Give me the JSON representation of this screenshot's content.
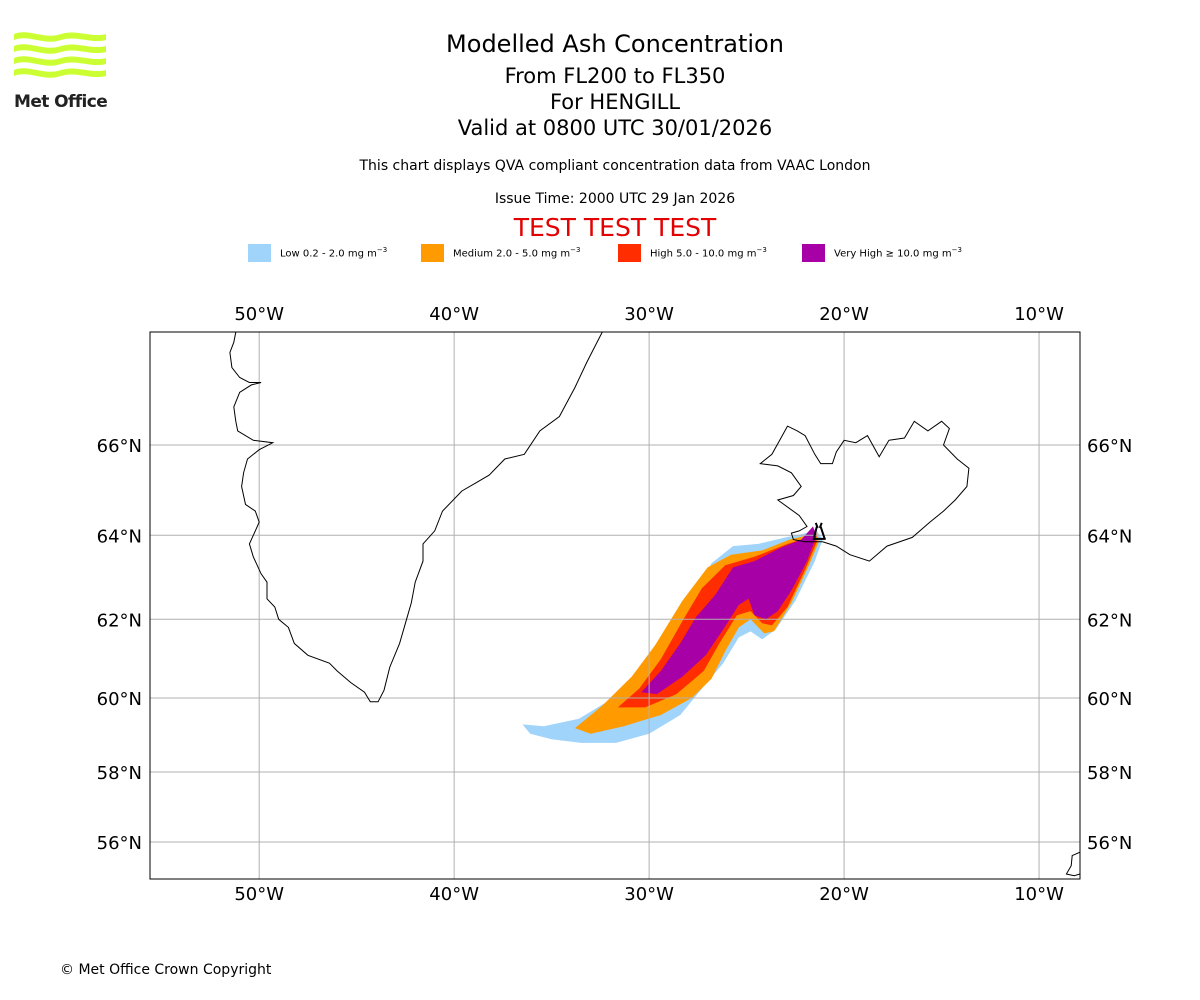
{
  "header": {
    "title": "Modelled Ash Concentration",
    "levels": "From FL200 to FL350",
    "volcano_line": "For HENGILL",
    "valid": "Valid at 0800 UTC 30/01/2026",
    "subtitle": "This chart displays QVA compliant concentration data from VAAC London",
    "issue_time": "Issue Time: 2000 UTC 29 Jan 2026",
    "test_banner": "TEST TEST TEST",
    "test_color": "#e30000"
  },
  "logo": {
    "text": "Met Office",
    "color": "#ccff33",
    "icon": "met-office-waves-icon"
  },
  "legend": [
    {
      "label": "Low 0.2 - 2.0 mg m",
      "unit_sup": "−3",
      "color": "#a0d4fa"
    },
    {
      "label": "Medium 2.0 - 5.0 mg m",
      "unit_sup": "−3",
      "color": "#ff9a00"
    },
    {
      "label": "High 5.0 - 10.0 mg m",
      "unit_sup": "−3",
      "color": "#ff2d00"
    },
    {
      "label": "Very High ≥ 10.0 mg m",
      "unit_sup": "−3",
      "color": "#a600a6"
    }
  ],
  "footer": {
    "copyright": "© Met Office Crown Copyright"
  },
  "map": {
    "extent": {
      "lon_min": -55.6,
      "lon_max": -7.9,
      "lat_min": 54.9,
      "lat_max": 68.3
    },
    "lon_ticks": [
      {
        "value": -50,
        "label": "50°W"
      },
      {
        "value": -40,
        "label": "40°W"
      },
      {
        "value": -30,
        "label": "30°W"
      },
      {
        "value": -20,
        "label": "20°W"
      },
      {
        "value": -10,
        "label": "10°W"
      }
    ],
    "lat_ticks": [
      {
        "value": 66,
        "label": "66°N"
      },
      {
        "value": 64,
        "label": "64°N"
      },
      {
        "value": 62,
        "label": "62°N"
      },
      {
        "value": 60,
        "label": "60°N"
      },
      {
        "value": 58,
        "label": "58°N"
      },
      {
        "value": 56,
        "label": "56°N"
      }
    ],
    "volcano": {
      "name": "HENGILL",
      "lon": -21.3,
      "lat": 64.1,
      "icon": "volcano-icon"
    },
    "coastlines": [
      {
        "name": "greenland",
        "points": [
          [
            -51.2,
            68.3
          ],
          [
            -51.3,
            68.1
          ],
          [
            -51.5,
            67.9
          ],
          [
            -51.4,
            67.6
          ],
          [
            -51.0,
            67.4
          ],
          [
            -50.5,
            67.3
          ],
          [
            -49.9,
            67.3
          ],
          [
            -50.4,
            67.25
          ],
          [
            -51.0,
            67.1
          ],
          [
            -51.3,
            66.8
          ],
          [
            -51.2,
            66.5
          ],
          [
            -51.1,
            66.3
          ],
          [
            -50.3,
            66.1
          ],
          [
            -49.3,
            66.05
          ],
          [
            -50.0,
            65.9
          ],
          [
            -50.6,
            65.7
          ],
          [
            -50.8,
            65.4
          ],
          [
            -50.9,
            65.1
          ],
          [
            -50.7,
            64.7
          ],
          [
            -50.2,
            64.55
          ],
          [
            -50.0,
            64.3
          ],
          [
            -50.2,
            64.1
          ],
          [
            -50.5,
            63.8
          ],
          [
            -50.3,
            63.5
          ],
          [
            -49.9,
            63.1
          ],
          [
            -49.6,
            62.9
          ],
          [
            -49.6,
            62.5
          ],
          [
            -49.2,
            62.3
          ],
          [
            -49.0,
            62.0
          ],
          [
            -48.5,
            61.8
          ],
          [
            -48.2,
            61.4
          ],
          [
            -47.5,
            61.1
          ],
          [
            -46.4,
            60.9
          ],
          [
            -46.0,
            60.7
          ],
          [
            -45.3,
            60.4
          ],
          [
            -44.6,
            60.15
          ],
          [
            -44.3,
            59.9
          ],
          [
            -43.9,
            59.9
          ],
          [
            -43.6,
            60.2
          ],
          [
            -43.3,
            60.8
          ],
          [
            -42.8,
            61.4
          ],
          [
            -42.5,
            61.9
          ],
          [
            -42.2,
            62.4
          ],
          [
            -42.0,
            62.9
          ],
          [
            -41.6,
            63.4
          ],
          [
            -41.6,
            63.8
          ],
          [
            -41.0,
            64.1
          ],
          [
            -40.6,
            64.55
          ],
          [
            -39.6,
            65.0
          ],
          [
            -38.8,
            65.2
          ],
          [
            -38.2,
            65.35
          ],
          [
            -37.4,
            65.7
          ],
          [
            -36.4,
            65.8
          ],
          [
            -35.6,
            66.3
          ],
          [
            -34.6,
            66.6
          ],
          [
            -33.8,
            67.2
          ],
          [
            -33.2,
            67.7
          ],
          [
            -32.4,
            68.3
          ]
        ]
      },
      {
        "name": "iceland",
        "points": [
          [
            -22.0,
            63.85
          ],
          [
            -22.6,
            63.9
          ],
          [
            -22.7,
            64.05
          ],
          [
            -22.3,
            64.1
          ],
          [
            -21.9,
            64.2
          ],
          [
            -22.3,
            64.45
          ],
          [
            -23.4,
            64.8
          ],
          [
            -22.6,
            64.9
          ],
          [
            -22.2,
            65.1
          ],
          [
            -22.7,
            65.4
          ],
          [
            -23.4,
            65.55
          ],
          [
            -24.3,
            65.6
          ],
          [
            -23.7,
            65.8
          ],
          [
            -23.3,
            66.1
          ],
          [
            -22.9,
            66.4
          ],
          [
            -22.4,
            66.3
          ],
          [
            -22.0,
            66.2
          ],
          [
            -21.5,
            65.8
          ],
          [
            -21.2,
            65.6
          ],
          [
            -20.6,
            65.6
          ],
          [
            -20.4,
            65.85
          ],
          [
            -20.0,
            66.1
          ],
          [
            -19.4,
            66.05
          ],
          [
            -18.8,
            66.2
          ],
          [
            -18.2,
            65.75
          ],
          [
            -17.7,
            66.1
          ],
          [
            -16.9,
            66.15
          ],
          [
            -16.4,
            66.5
          ],
          [
            -15.7,
            66.3
          ],
          [
            -15.0,
            66.5
          ],
          [
            -14.6,
            66.35
          ],
          [
            -14.9,
            66.0
          ],
          [
            -14.2,
            65.7
          ],
          [
            -13.6,
            65.5
          ],
          [
            -13.7,
            65.1
          ],
          [
            -14.3,
            64.8
          ],
          [
            -14.9,
            64.55
          ],
          [
            -15.6,
            64.3
          ],
          [
            -16.5,
            63.95
          ],
          [
            -17.8,
            63.75
          ],
          [
            -18.7,
            63.4
          ],
          [
            -19.7,
            63.55
          ],
          [
            -20.4,
            63.75
          ],
          [
            -21.1,
            63.85
          ],
          [
            -22.0,
            63.85
          ]
        ]
      },
      {
        "name": "scotland-corner",
        "points": [
          [
            -7.9,
            55.7
          ],
          [
            -8.3,
            55.6
          ],
          [
            -8.35,
            55.3
          ],
          [
            -8.6,
            55.05
          ],
          [
            -8.2,
            55.0
          ],
          [
            -7.9,
            55.05
          ]
        ]
      }
    ],
    "ash_contours": [
      {
        "level": "low",
        "color": "#a0d4fa",
        "points": [
          [
            -36.5,
            59.3
          ],
          [
            -35.4,
            59.25
          ],
          [
            -33.6,
            59.45
          ],
          [
            -32.0,
            59.95
          ],
          [
            -30.6,
            60.6
          ],
          [
            -29.2,
            61.4
          ],
          [
            -27.8,
            62.45
          ],
          [
            -26.8,
            63.35
          ],
          [
            -25.7,
            63.75
          ],
          [
            -24.4,
            63.8
          ],
          [
            -23.0,
            63.95
          ],
          [
            -21.4,
            64.1
          ],
          [
            -21.1,
            63.9
          ],
          [
            -21.5,
            63.4
          ],
          [
            -22.5,
            62.45
          ],
          [
            -23.5,
            61.75
          ],
          [
            -24.2,
            61.5
          ],
          [
            -24.8,
            61.7
          ],
          [
            -25.4,
            61.55
          ],
          [
            -26.2,
            60.9
          ],
          [
            -27.2,
            60.3
          ],
          [
            -28.4,
            59.55
          ],
          [
            -30.0,
            59.05
          ],
          [
            -31.7,
            58.8
          ],
          [
            -33.5,
            58.8
          ],
          [
            -35.0,
            58.9
          ],
          [
            -36.1,
            59.05
          ],
          [
            -36.5,
            59.3
          ]
        ]
      },
      {
        "level": "medium",
        "color": "#ff9a00",
        "points": [
          [
            -33.8,
            59.2
          ],
          [
            -32.4,
            59.8
          ],
          [
            -30.9,
            60.55
          ],
          [
            -29.7,
            61.35
          ],
          [
            -28.3,
            62.45
          ],
          [
            -27.0,
            63.25
          ],
          [
            -25.8,
            63.55
          ],
          [
            -24.2,
            63.65
          ],
          [
            -22.8,
            63.9
          ],
          [
            -21.4,
            64.05
          ],
          [
            -21.3,
            63.85
          ],
          [
            -21.8,
            63.3
          ],
          [
            -22.7,
            62.4
          ],
          [
            -23.6,
            61.7
          ],
          [
            -24.1,
            61.65
          ],
          [
            -24.8,
            62.0
          ],
          [
            -25.4,
            61.8
          ],
          [
            -26.1,
            61.2
          ],
          [
            -26.8,
            60.5
          ],
          [
            -27.8,
            60.0
          ],
          [
            -29.4,
            59.55
          ],
          [
            -31.3,
            59.25
          ],
          [
            -33.0,
            59.05
          ],
          [
            -33.8,
            59.2
          ]
        ]
      },
      {
        "level": "high",
        "color": "#ff2d00",
        "points": [
          [
            -31.6,
            59.75
          ],
          [
            -30.5,
            60.25
          ],
          [
            -29.4,
            61.0
          ],
          [
            -28.3,
            61.95
          ],
          [
            -27.3,
            62.75
          ],
          [
            -26.1,
            63.3
          ],
          [
            -24.6,
            63.5
          ],
          [
            -22.9,
            63.8
          ],
          [
            -21.5,
            64.0
          ],
          [
            -21.4,
            63.85
          ],
          [
            -22.0,
            63.2
          ],
          [
            -22.9,
            62.3
          ],
          [
            -23.7,
            61.85
          ],
          [
            -24.2,
            61.9
          ],
          [
            -24.8,
            62.2
          ],
          [
            -25.5,
            62.1
          ],
          [
            -26.4,
            61.4
          ],
          [
            -27.2,
            60.7
          ],
          [
            -28.6,
            60.1
          ],
          [
            -30.2,
            59.75
          ],
          [
            -31.6,
            59.75
          ]
        ]
      },
      {
        "level": "very_high",
        "color": "#a600a6",
        "points": [
          [
            -30.4,
            60.15
          ],
          [
            -29.4,
            60.7
          ],
          [
            -28.4,
            61.4
          ],
          [
            -27.6,
            62.05
          ],
          [
            -26.6,
            62.6
          ],
          [
            -25.7,
            63.25
          ],
          [
            -24.6,
            63.4
          ],
          [
            -23.3,
            63.7
          ],
          [
            -22.2,
            63.9
          ],
          [
            -21.6,
            64.2
          ],
          [
            -21.4,
            64.0
          ],
          [
            -21.9,
            63.4
          ],
          [
            -22.7,
            62.7
          ],
          [
            -23.4,
            62.2
          ],
          [
            -24.0,
            62.0
          ],
          [
            -24.6,
            62.1
          ],
          [
            -24.9,
            62.5
          ],
          [
            -25.4,
            62.35
          ],
          [
            -26.2,
            61.75
          ],
          [
            -27.1,
            61.1
          ],
          [
            -28.3,
            60.55
          ],
          [
            -29.6,
            60.1
          ],
          [
            -30.4,
            60.15
          ]
        ]
      }
    ]
  }
}
